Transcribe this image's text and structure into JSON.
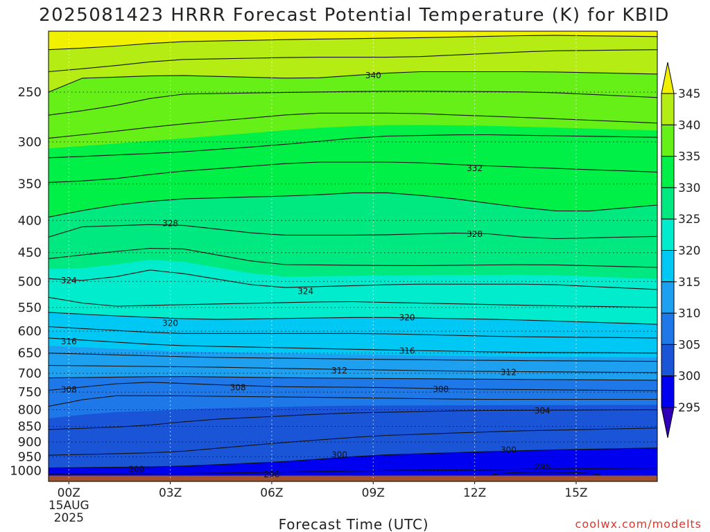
{
  "chart_data": {
    "type": "contour",
    "title": "2025081423 HRRR Forecast Potential Temperature (K) for KBID",
    "xlabel": "Forecast Time (UTC)",
    "ylabel": "",
    "x_ticks": [
      "00Z",
      "03Z",
      "06Z",
      "09Z",
      "12Z",
      "15Z"
    ],
    "x_date_label": [
      "15AUG",
      "2025"
    ],
    "xlim_hours": [
      -0.6,
      17.4
    ],
    "y_ticks": [
      250,
      300,
      350,
      400,
      450,
      500,
      550,
      600,
      650,
      700,
      750,
      800,
      850,
      900,
      950,
      1000
    ],
    "ylim_hpa": [
      1040,
      200
    ],
    "grid": "dotted",
    "colorbar": {
      "levels": [
        295,
        300,
        305,
        310,
        315,
        320,
        325,
        330,
        335,
        340,
        345
      ],
      "labels": [
        "345",
        "340",
        "335",
        "330",
        "325",
        "320",
        "315",
        "310",
        "305",
        "300",
        "295"
      ],
      "colors": [
        "#2f00b8",
        "#0000f0",
        "#1a55d8",
        "#1e78e8",
        "#1ea0f0",
        "#00c8f4",
        "#00eccc",
        "#00e880",
        "#00f048",
        "#66f018",
        "#b4ec14",
        "#f0f000"
      ],
      "extend": "both"
    },
    "contour_labels": [
      {
        "value": "340",
        "x_hr": 9.0,
        "p": 235
      },
      {
        "value": "332",
        "x_hr": 12.0,
        "p": 330
      },
      {
        "value": "328",
        "x_hr": 3.0,
        "p": 404
      },
      {
        "value": "328",
        "x_hr": 12.0,
        "p": 420
      },
      {
        "value": "324",
        "x_hr": 0.0,
        "p": 498
      },
      {
        "value": "324",
        "x_hr": 7.0,
        "p": 518
      },
      {
        "value": "320",
        "x_hr": 3.0,
        "p": 582
      },
      {
        "value": "320",
        "x_hr": 10.0,
        "p": 570
      },
      {
        "value": "316",
        "x_hr": 0.0,
        "p": 622
      },
      {
        "value": "316",
        "x_hr": 10.0,
        "p": 644
      },
      {
        "value": "312",
        "x_hr": 8.0,
        "p": 692
      },
      {
        "value": "312",
        "x_hr": 13.0,
        "p": 697
      },
      {
        "value": "308",
        "x_hr": 0.0,
        "p": 742
      },
      {
        "value": "308",
        "x_hr": 5.0,
        "p": 737
      },
      {
        "value": "308",
        "x_hr": 11.0,
        "p": 741
      },
      {
        "value": "304",
        "x_hr": 14.0,
        "p": 802
      },
      {
        "value": "300",
        "x_hr": 8.0,
        "p": 942
      },
      {
        "value": "300",
        "x_hr": 13.0,
        "p": 925
      },
      {
        "value": "300",
        "x_hr": 2.0,
        "p": 993
      },
      {
        "value": "296",
        "x_hr": 14.0,
        "p": 985
      },
      {
        "value": "296",
        "x_hr": 6.0,
        "p": 1013
      }
    ],
    "credit": "coolwx.com/modelts"
  }
}
